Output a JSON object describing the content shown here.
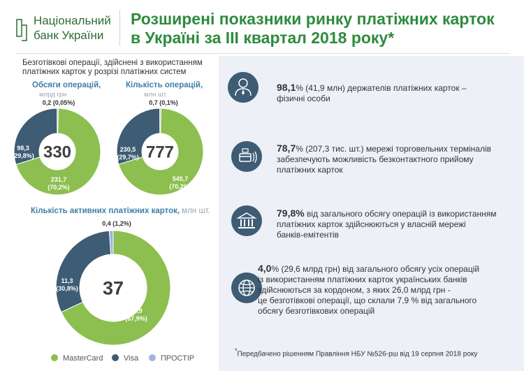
{
  "logo": {
    "line1": "Національний",
    "line2": "банк України"
  },
  "title": {
    "line1": "Розширені показники ринку платіжних карток",
    "line2": "в Україні за ІІІ квартал 2018 року*"
  },
  "subheading": {
    "line1": "Безготівкові операції, здійснені з використанням",
    "line2": "платіжних карток у розрізі платіжних систем"
  },
  "colors": {
    "mastercard": "#8cbf4f",
    "visa": "#3e5c74",
    "prostir": "#a3b4dc",
    "title": "#2e8b3c",
    "accent": "#3d7ea6"
  },
  "chart_data": [
    {
      "type": "pie",
      "title": "Обсяги операцій,",
      "unit": "млрд грн",
      "total": "330",
      "categories": [
        "MasterCard",
        "Visa",
        "ПРОСТІР"
      ],
      "values": [
        231.7,
        98.3,
        0.2
      ],
      "labels": [
        {
          "value": "231,7",
          "share": "(70,2%)"
        },
        {
          "value": "98,3",
          "share": "(29,8%)"
        },
        {
          "value": "0,2 (0,05%)",
          "share": ""
        }
      ]
    },
    {
      "type": "pie",
      "title": "Кількість операцій,",
      "unit": "млн шт.",
      "total": "777",
      "categories": [
        "MasterCard",
        "Visa",
        "ПРОСТІР"
      ],
      "values": [
        545.7,
        230.5,
        0.7
      ],
      "labels": [
        {
          "value": "545,7",
          "share": "(70,2%)"
        },
        {
          "value": "230,5",
          "share": "(29,7%)"
        },
        {
          "value": "0,7 (0,1%)",
          "share": ""
        }
      ]
    },
    {
      "type": "pie",
      "title": "Кількість активних платіжних карток,",
      "unit": "млн шт.",
      "total": "37",
      "categories": [
        "MasterCard",
        "Visa",
        "ПРОСТІР"
      ],
      "values": [
        24.9,
        11.3,
        0.4
      ],
      "labels": [
        {
          "value": "24,9",
          "share": "(67,9%)"
        },
        {
          "value": "11,3",
          "share": "(30,8%)"
        },
        {
          "value": "0,4 (1,2%)",
          "share": ""
        }
      ]
    }
  ],
  "stats": [
    {
      "icon": "person-icon",
      "value": "98,1",
      "text": "% (41,9 млн) держателів платіжних карток –",
      "text2": "фізичні особи"
    },
    {
      "icon": "contactless-terminal-icon",
      "value": "78,7",
      "text": "% (207,3 тис. шт.) мережі торговельних терміналів",
      "text2": "забезпечують можливість безконтактного прийому",
      "text3": "платіжних карток"
    },
    {
      "icon": "bank-building-icon",
      "value": "79,8%",
      "text": " від загального обсягу операцій із використанням",
      "text2": "платіжних карток здійснюються у власній мережі",
      "text3": "банків-емітентів"
    },
    {
      "icon": "globe-icon",
      "value": "4,0",
      "text": "% (29,6 млрд грн) від загального обсягу усіх операцій",
      "text2": "із використанням платіжних карток українських банків",
      "text3": "здійснюються за кордоном, з яких 26,0 млрд грн -",
      "text4": "це безготівкові операції, що склали 7,9 % від загального",
      "text5": "обсягу безготівкових операцій"
    }
  ],
  "footnote": {
    "mark": "*",
    "text": "Передбачено рішенням Правління НБУ №526-рш від 19 серпня 2018 року"
  },
  "legend": [
    "MasterCard",
    "Visa",
    "ПРОСТІР"
  ]
}
